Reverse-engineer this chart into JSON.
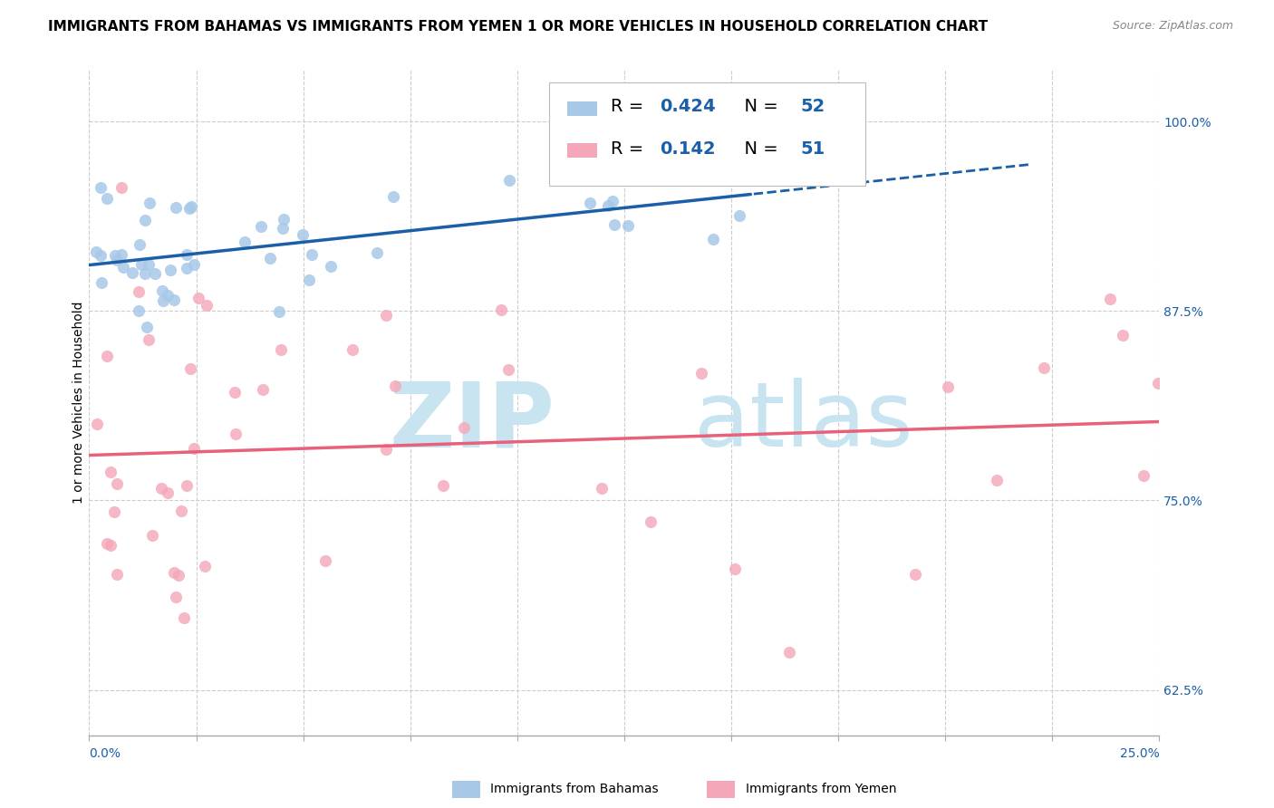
{
  "title": "IMMIGRANTS FROM BAHAMAS VS IMMIGRANTS FROM YEMEN 1 OR MORE VEHICLES IN HOUSEHOLD CORRELATION CHART",
  "source": "Source: ZipAtlas.com",
  "ylabel": "1 or more Vehicles in Household",
  "xlim": [
    0.0,
    0.25
  ],
  "ylim": [
    0.595,
    1.035
  ],
  "yticks": [
    0.625,
    0.75,
    0.875,
    1.0
  ],
  "yticklabels": [
    "62.5%",
    "75.0%",
    "87.5%",
    "100.0%"
  ],
  "xticks": [
    0.0,
    0.025,
    0.05,
    0.075,
    0.1,
    0.125,
    0.15,
    0.175,
    0.2,
    0.225,
    0.25
  ],
  "legend_entries": [
    {
      "label": "Immigrants from Bahamas",
      "R": "0.424",
      "N": "52",
      "color": "#a8c8e8"
    },
    {
      "label": "Immigrants from Yemen",
      "R": "0.142",
      "N": "51",
      "color": "#f4a7b9"
    }
  ],
  "blue_line_color": "#1a5fa8",
  "pink_line_color": "#e8607a",
  "blue_dot_color": "#a8c8e8",
  "pink_dot_color": "#f4a7b9",
  "grid_color": "#cccccc",
  "background_color": "#ffffff",
  "watermark_zip": "ZIP",
  "watermark_atlas": "atlas",
  "watermark_color": "#c8e4f0",
  "title_fontsize": 11,
  "axis_label_fontsize": 10,
  "tick_fontsize": 10,
  "legend_fontsize": 14
}
